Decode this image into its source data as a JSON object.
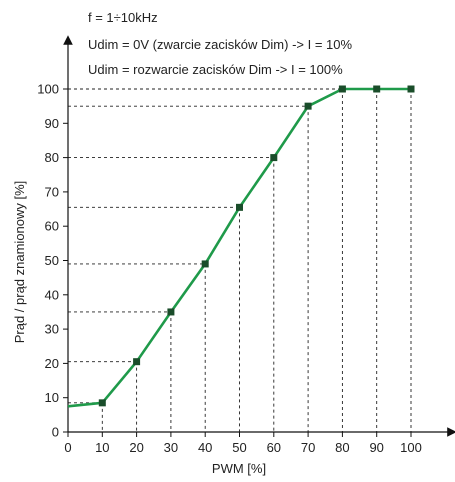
{
  "chart_data": {
    "type": "line",
    "xlabel": "PWM [%]",
    "ylabel": "Prąd / prąd znamionowy [%]",
    "xlim": [
      0,
      100
    ],
    "ylim": [
      0,
      100
    ],
    "x_ticks": [
      "0",
      "10",
      "20",
      "30",
      "40",
      "50",
      "60",
      "70",
      "80",
      "90",
      "100"
    ],
    "y_ticks": [
      "0",
      "10",
      "20",
      "30",
      "40",
      "50",
      "60",
      "70",
      "80",
      "90",
      "100"
    ],
    "annotations": [
      "f = 1÷10kHz",
      "Udim = 0V (zwarcie zacisków Dim) -> I = 10%",
      "Udim = rozwarcie zacisków Dim -> I = 100%"
    ],
    "grid": false,
    "line_color": "#1f9a4a",
    "marker_color": "#1a4d2a",
    "series": [
      {
        "x": [
          10,
          20,
          30,
          40,
          50,
          60,
          70,
          80,
          90,
          100
        ],
        "y": [
          8.5,
          20.5,
          35,
          49,
          65.5,
          80,
          95,
          100,
          100,
          100
        ]
      }
    ],
    "line_start": {
      "x": 0,
      "y": 7.5
    }
  }
}
